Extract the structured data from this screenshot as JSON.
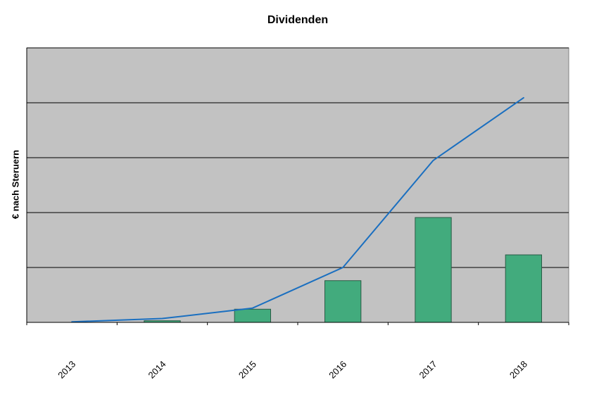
{
  "chart_data": {
    "type": "combo",
    "title": "Dividenden",
    "xlabel": "",
    "ylabel": "€ nach Steruern",
    "categories": [
      "2013",
      "2014",
      "2015",
      "2016",
      "2017",
      "2018"
    ],
    "series": [
      {
        "type": "bar",
        "values": [
          0,
          0.03,
          0.24,
          0.76,
          1.91,
          1.23
        ]
      },
      {
        "type": "line",
        "values": [
          0.01,
          0.07,
          0.26,
          1.0,
          2.95,
          4.09
        ]
      }
    ],
    "ylim": [
      0,
      5
    ],
    "grid": true,
    "legend": "none",
    "y_tick_labels_visible": false,
    "colors": {
      "plot_background": "#c2c2c2",
      "gridline": "#000000",
      "axis": "#000000",
      "bar_fill": "#42ab7d",
      "bar_border": "#2a5c46",
      "line": "#1a6fc0",
      "text": "#000000",
      "plot_border": "#808080"
    }
  }
}
